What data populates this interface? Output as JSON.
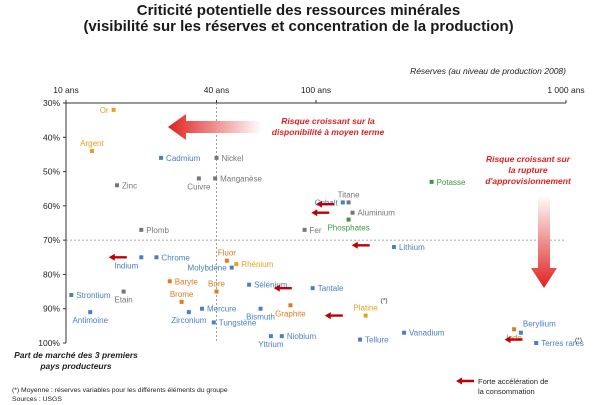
{
  "title": "Criticité potentielle des ressources minérales",
  "subtitle": "(visibilité sur les réserves et concentration de la production)",
  "chart_data": {
    "type": "scatter",
    "x_axis": {
      "label": "Réserves (au niveau de production 2008)",
      "scale": "log",
      "range": [
        10,
        1000
      ],
      "ticks": [
        {
          "value": 10,
          "label": "10 ans"
        },
        {
          "value": 40,
          "label": "40 ans"
        },
        {
          "value": 100,
          "label": "100 ans"
        },
        {
          "value": 1000,
          "label": "1 000 ans"
        }
      ]
    },
    "y_axis": {
      "label_lines": [
        "Part de marché des 3 premiers",
        "pays producteurs"
      ],
      "range": [
        30,
        100
      ],
      "inverted": true,
      "ticks": [
        {
          "value": 30,
          "label": "30%"
        },
        {
          "value": 40,
          "label": "40%"
        },
        {
          "value": 50,
          "label": "50%"
        },
        {
          "value": 60,
          "label": "60%"
        },
        {
          "value": 70,
          "label": "70%"
        },
        {
          "value": 80,
          "label": "80%"
        },
        {
          "value": 90,
          "label": "90%"
        },
        {
          "value": 100,
          "label": "100%"
        }
      ]
    },
    "thresholds": {
      "x": 40,
      "y": 70
    },
    "colors": {
      "precious": "#e8a020",
      "metal": "#4a7fc4",
      "base": "#777777",
      "agri": "#3c9a3c",
      "industrial": "#e07a20",
      "risk": "#e02020",
      "arrow": "#c00000"
    },
    "points": [
      {
        "name": "Or",
        "x": 15.5,
        "y": 32,
        "color": "#e8a020",
        "label_pos": "left"
      },
      {
        "name": "Argent",
        "x": 12.7,
        "y": 44,
        "color": "#e8a020",
        "label_pos": "above"
      },
      {
        "name": "Cadmium",
        "x": 24,
        "y": 46,
        "color": "#4a7fc4",
        "label_pos": "right"
      },
      {
        "name": "Nickel",
        "x": 40,
        "y": 46,
        "color": "#777777",
        "label_pos": "right"
      },
      {
        "name": "Zinc",
        "x": 16,
        "y": 54,
        "color": "#777777",
        "label_pos": "right"
      },
      {
        "name": "Cuivre",
        "x": 34,
        "y": 52,
        "color": "#777777",
        "label_pos": "below"
      },
      {
        "name": "Manganèse",
        "x": 39.5,
        "y": 52,
        "color": "#777777",
        "label_pos": "right"
      },
      {
        "name": "Potasse",
        "x": 290,
        "y": 53,
        "color": "#3c9a3c",
        "label_pos": "right"
      },
      {
        "name": "Titane",
        "x": 135,
        "y": 59,
        "color": "#777777",
        "label_pos": "above"
      },
      {
        "name": "Cobalt",
        "x": 128,
        "y": 59,
        "color": "#4a7fc4",
        "label_pos": "left"
      },
      {
        "name": "Aluminium",
        "x": 140,
        "y": 62,
        "color": "#777777",
        "label_pos": "right"
      },
      {
        "name": "Phosphates",
        "x": 135,
        "y": 64,
        "color": "#3c9a3c",
        "label_pos": "below"
      },
      {
        "name": "Plomb",
        "x": 20,
        "y": 67,
        "color": "#777777",
        "label_pos": "right"
      },
      {
        "name": "Fer",
        "x": 90,
        "y": 67,
        "color": "#777777",
        "label_pos": "right"
      },
      {
        "name": "Lithium",
        "x": 205,
        "y": 72,
        "color": "#4a7fc4",
        "label_pos": "right"
      },
      {
        "name": "Indium",
        "x": 20,
        "y": 75,
        "color": "#4a7fc4",
        "label_pos": "below-left"
      },
      {
        "name": "Chrome",
        "x": 23,
        "y": 75,
        "color": "#4a7fc4",
        "label_pos": "right"
      },
      {
        "name": "Fluor",
        "x": 44,
        "y": 76,
        "color": "#e07a20",
        "label_pos": "above"
      },
      {
        "name": "Molybdène",
        "x": 46,
        "y": 78,
        "color": "#4a7fc4",
        "label_pos": "left"
      },
      {
        "name": "Rhénium",
        "x": 48,
        "y": 77,
        "color": "#e8a020",
        "label_pos": "right"
      },
      {
        "name": "Baryte",
        "x": 26,
        "y": 82,
        "color": "#e07a20",
        "label_pos": "right"
      },
      {
        "name": "Etain",
        "x": 17,
        "y": 85,
        "color": "#777777",
        "label_pos": "below"
      },
      {
        "name": "Bore",
        "x": 40,
        "y": 85,
        "color": "#e07a20",
        "label_pos": "above"
      },
      {
        "name": "Sélénium",
        "x": 54,
        "y": 83,
        "color": "#4a7fc4",
        "label_pos": "right"
      },
      {
        "name": "Tantale",
        "x": 97,
        "y": 84,
        "color": "#4a7fc4",
        "label_pos": "right"
      },
      {
        "name": "Strontium",
        "x": 10.5,
        "y": 86,
        "color": "#4a7fc4",
        "label_pos": "right"
      },
      {
        "name": "Brome",
        "x": 29,
        "y": 88,
        "color": "#e07a20",
        "label_pos": "above"
      },
      {
        "name": "Zirconium",
        "x": 31,
        "y": 91,
        "color": "#4a7fc4",
        "label_pos": "below"
      },
      {
        "name": "Mercure",
        "x": 35,
        "y": 90,
        "color": "#4a7fc4",
        "label_pos": "right"
      },
      {
        "name": "Antimoine",
        "x": 12.5,
        "y": 91,
        "color": "#4a7fc4",
        "label_pos": "below"
      },
      {
        "name": "Tungstène",
        "x": 39,
        "y": 94,
        "color": "#4a7fc4",
        "label_pos": "right"
      },
      {
        "name": "Bismuth",
        "x": 60,
        "y": 90,
        "color": "#4a7fc4",
        "label_pos": "below"
      },
      {
        "name": "Graphite",
        "x": 79,
        "y": 89,
        "color": "#e07a20",
        "label_pos": "below"
      },
      {
        "name": "Platine",
        "x": 158,
        "y": 92,
        "color": "#e8a020",
        "label_pos": "above"
      },
      {
        "name": "Niobium",
        "x": 73,
        "y": 98,
        "color": "#4a7fc4",
        "label_pos": "right"
      },
      {
        "name": "Yttrium",
        "x": 66,
        "y": 98,
        "color": "#4a7fc4",
        "label_pos": "below"
      },
      {
        "name": "Vanadium",
        "x": 225,
        "y": 97,
        "color": "#4a7fc4",
        "label_pos": "right"
      },
      {
        "name": "Tellure",
        "x": 150,
        "y": 99,
        "color": "#4a7fc4",
        "label_pos": "right"
      },
      {
        "name": "Beryllium",
        "x": 660,
        "y": 97,
        "color": "#4a7fc4",
        "label_pos": "above-right"
      },
      {
        "name": "Iode",
        "x": 620,
        "y": 96,
        "color": "#e07a20",
        "label_pos": "below"
      },
      {
        "name": "Terres rares",
        "x": 760,
        "y": 100,
        "color": "#4a7fc4",
        "label_pos": "right"
      }
    ],
    "acceleration_arrows": [
      {
        "x": 118,
        "y": 59.5
      },
      {
        "x": 113,
        "y": 62
      },
      {
        "x": 164,
        "y": 71.5
      },
      {
        "x": 17.5,
        "y": 75
      },
      {
        "x": 80,
        "y": 84
      },
      {
        "x": 128,
        "y": 92
      },
      {
        "x": 670,
        "y": 99
      }
    ],
    "annotations": {
      "risk_left": [
        "Risque croissant sur la",
        "disponibilité à moyen terme"
      ],
      "risk_right": [
        "Risque croissant sur",
        "la rupture",
        "d'approvisionnement"
      ],
      "platine_mark": "(*)",
      "terres_mark": "(*)",
      "legend_arrow": [
        "Forte accélération de",
        "la consommation"
      ],
      "footnote": "(*) Moyenne : réserves variables pour les différents éléments du groupe",
      "source": "Sources : USGS"
    }
  }
}
